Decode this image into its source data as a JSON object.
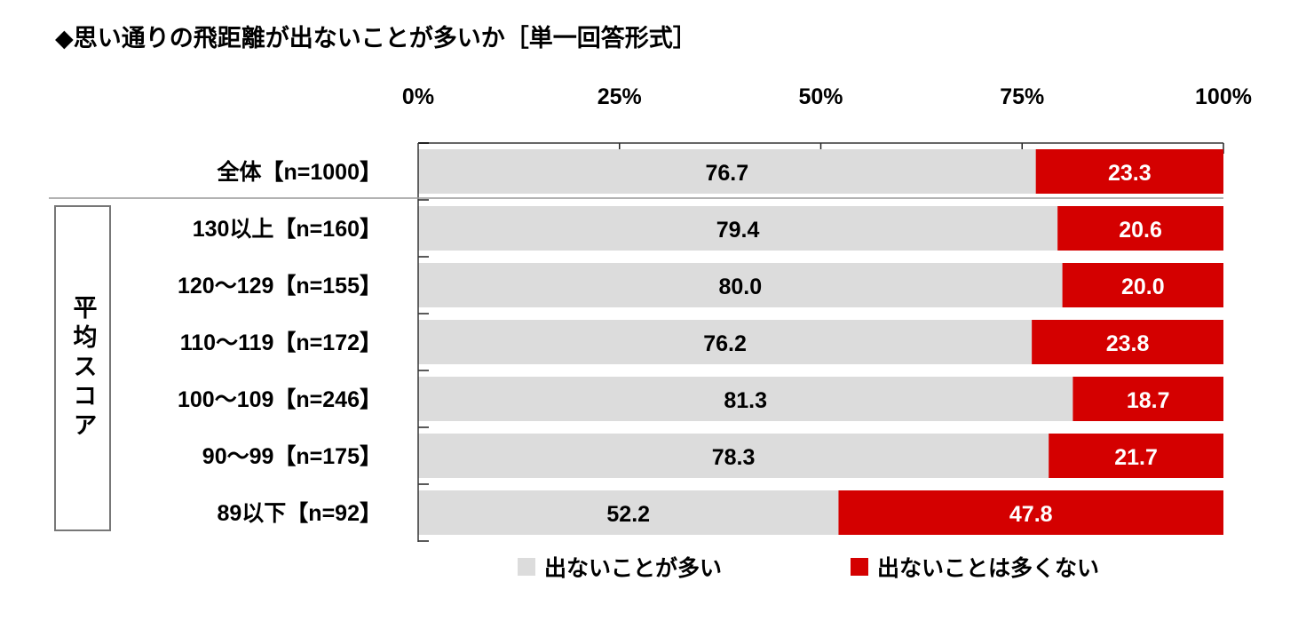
{
  "chart_data": {
    "type": "bar",
    "stacked": true,
    "orientation": "horizontal",
    "title": "◆思い通りの飛距離が出ないことが多いか［単一回答形式］",
    "xlabel": "",
    "ylabel": "",
    "xlim": [
      0,
      100
    ],
    "x_ticks": [
      "0%",
      "25%",
      "50%",
      "75%",
      "100%"
    ],
    "group_label": "平均スコア",
    "categories": [
      "全体【n=1000】",
      "130以上【n=160】",
      "120～129【n=155】",
      "110～119【n=172】",
      "100～109【n=246】",
      "90～99【n=175】",
      "89以下【n=92】"
    ],
    "series": [
      {
        "name": "出ないことが多い",
        "color": "#dcdcdc",
        "values": [
          76.7,
          79.4,
          80.0,
          76.2,
          81.3,
          78.3,
          52.2
        ]
      },
      {
        "name": "出ないことは多くない",
        "color": "#d40000",
        "values": [
          23.3,
          20.6,
          20.0,
          23.8,
          18.7,
          21.7,
          47.8
        ]
      }
    ],
    "legend_position": "bottom",
    "grid": false
  }
}
